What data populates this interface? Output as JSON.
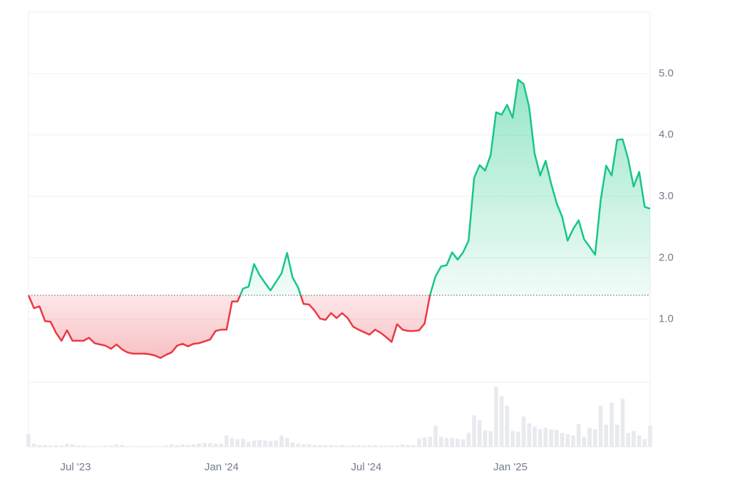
{
  "chart_data": {
    "type": "line",
    "x": [
      0,
      1,
      2,
      3,
      4,
      5,
      6,
      7,
      8,
      9,
      10,
      11,
      12,
      13,
      14,
      15,
      16,
      17,
      18,
      19,
      20,
      21,
      22,
      23,
      24,
      25,
      26,
      27,
      28,
      29,
      30,
      31,
      32,
      33,
      34,
      35,
      36,
      37,
      38,
      39,
      40,
      41,
      42,
      43,
      44,
      45,
      46,
      47,
      48,
      49,
      50,
      51,
      52,
      53,
      54,
      55,
      56,
      57,
      58,
      59,
      60,
      61,
      62,
      63,
      64,
      65,
      66,
      67,
      68,
      69,
      70,
      71,
      72,
      73,
      74,
      75,
      76,
      77,
      78,
      79,
      80,
      81,
      82,
      83,
      84,
      85,
      86,
      87,
      88,
      89,
      90,
      91,
      92,
      93,
      94,
      95,
      96,
      97,
      98,
      99,
      100,
      101,
      102,
      103,
      104,
      105,
      106,
      107,
      108,
      109,
      110,
      111,
      112,
      113
    ],
    "series": [
      {
        "values": [
          1.39,
          1.18,
          1.21,
          0.97,
          0.96,
          0.78,
          0.65,
          0.82,
          0.65,
          0.65,
          0.65,
          0.7,
          0.61,
          0.59,
          0.57,
          0.52,
          0.59,
          0.51,
          0.46,
          0.44,
          0.44,
          0.44,
          0.43,
          0.41,
          0.37,
          0.42,
          0.46,
          0.57,
          0.6,
          0.56,
          0.6,
          0.61,
          0.64,
          0.67,
          0.81,
          0.83,
          0.83,
          1.29,
          1.29,
          1.5,
          1.53,
          1.9,
          1.72,
          1.59,
          1.47,
          1.61,
          1.75,
          2.08,
          1.68,
          1.52,
          1.25,
          1.24,
          1.14,
          1.01,
          0.99,
          1.1,
          1.02,
          1.1,
          1.02,
          0.88,
          0.83,
          0.79,
          0.75,
          0.83,
          0.78,
          0.71,
          0.63,
          0.92,
          0.83,
          0.81,
          0.81,
          0.82,
          0.93,
          1.4,
          1.7,
          1.86,
          1.88,
          2.09,
          1.97,
          2.09,
          2.28,
          3.3,
          3.51,
          3.42,
          3.67,
          4.37,
          4.33,
          4.49,
          4.28,
          4.9,
          4.83,
          4.46,
          3.7,
          3.34,
          3.58,
          3.21,
          2.89,
          2.67,
          2.28,
          2.47,
          2.61,
          2.3,
          2.18,
          2.05,
          2.93,
          3.5,
          3.34,
          3.92,
          3.93,
          3.61,
          3.16,
          3.4,
          2.83,
          2.8
        ],
        "color_up": "#16c784",
        "color_down": "#ea3943"
      },
      {
        "type": "bar",
        "axis": "y2",
        "color": "#e8eaef",
        "values": [
          20,
          5,
          3,
          3,
          2,
          3,
          2,
          5,
          4,
          2,
          2,
          1,
          1,
          1,
          2,
          2,
          4,
          3,
          1,
          1,
          1,
          1,
          1,
          1,
          1,
          2,
          4,
          3,
          4,
          3,
          4,
          5,
          6,
          6,
          5,
          5,
          18,
          14,
          12,
          13,
          8,
          10,
          11,
          10,
          9,
          10,
          18,
          14,
          7,
          5,
          4,
          4,
          3,
          3,
          3,
          3,
          2,
          3,
          2,
          3,
          3,
          2,
          3,
          3,
          2,
          2,
          2,
          2,
          4,
          3,
          3,
          13,
          15,
          16,
          33,
          16,
          14,
          14,
          13,
          12,
          22,
          50,
          42,
          26,
          25,
          95,
          80,
          65,
          25,
          24,
          48,
          37,
          32,
          28,
          30,
          28,
          27,
          22,
          20,
          18,
          36,
          16,
          30,
          28,
          65,
          35,
          70,
          35,
          76,
          22,
          25,
          18,
          12,
          34
        ]
      }
    ],
    "baseline": 1.39,
    "xlim": [
      0,
      113
    ],
    "xticks": [
      {
        "value": 8.55,
        "label": "Jul '23"
      },
      {
        "value": 35.1,
        "label": "Jan '24"
      },
      {
        "value": 61.4,
        "label": "Jul '24"
      },
      {
        "value": 87.6,
        "label": "Jan '25"
      }
    ],
    "ylim": [
      0,
      6
    ],
    "yticks": [
      {
        "value": 1,
        "label": "1.0"
      },
      {
        "value": 2,
        "label": "2.0"
      },
      {
        "value": 3,
        "label": "3.0"
      },
      {
        "value": 4,
        "label": "4.0"
      },
      {
        "value": 5,
        "label": "5.0"
      }
    ],
    "y2lim": [
      0,
      100
    ],
    "grid": true
  }
}
